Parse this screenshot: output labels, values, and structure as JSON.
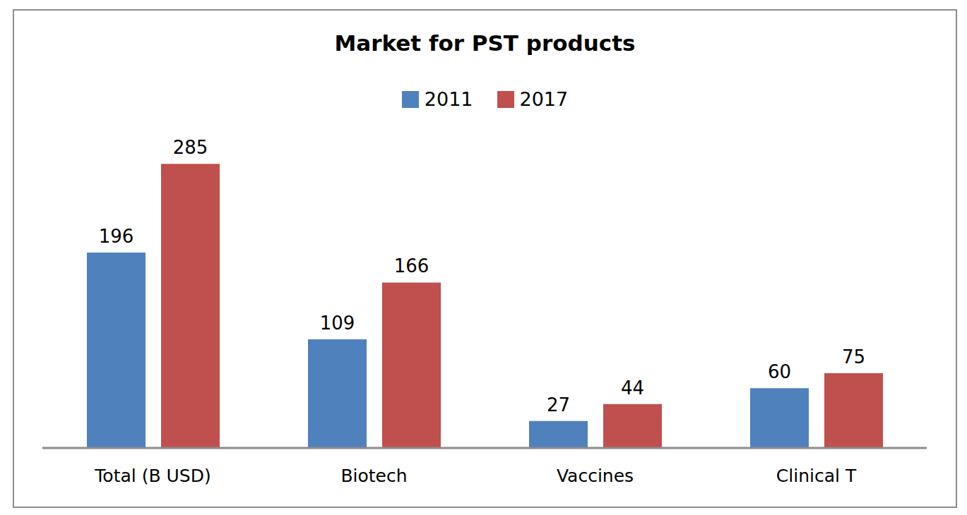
{
  "chart_data": {
    "type": "bar",
    "title": "Market for PST products",
    "categories": [
      "Total (B USD)",
      "Biotech",
      "Vaccines",
      "Clinical T"
    ],
    "series": [
      {
        "name": "2011",
        "color": "#4f81bd",
        "values": [
          196,
          109,
          27,
          60
        ]
      },
      {
        "name": "2017",
        "color": "#c0504d",
        "values": [
          285,
          166,
          44,
          75
        ]
      }
    ],
    "ylim": [
      0,
      300
    ],
    "grid": false,
    "legend": "top",
    "data_labels": true,
    "tick_labels": "x"
  }
}
